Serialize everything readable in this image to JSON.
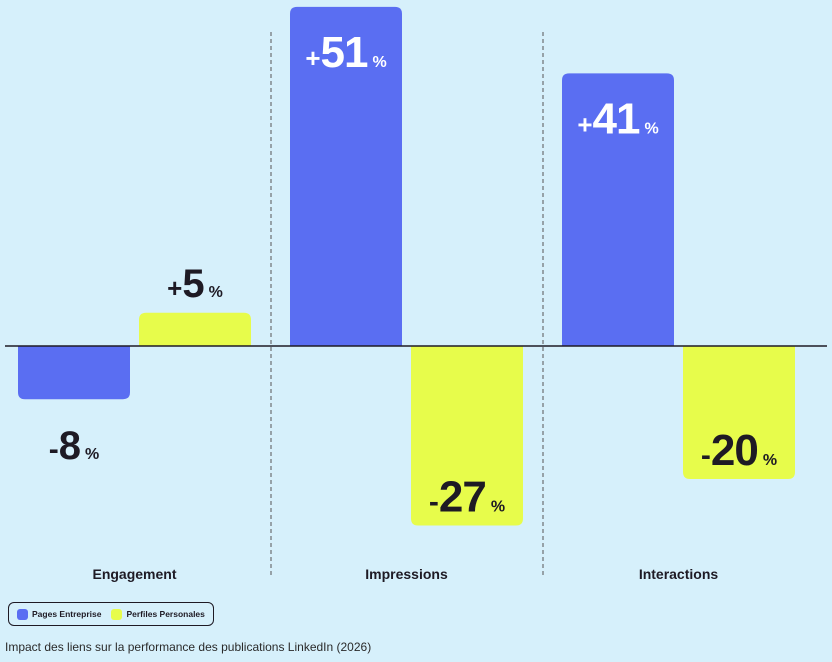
{
  "chart_data": {
    "type": "bar",
    "categories": [
      "Engagement",
      "Impressions",
      "Interactions"
    ],
    "series": [
      {
        "name": "Pages Entreprise",
        "values": [
          -8,
          51,
          41
        ],
        "labels": [
          "-8",
          "+51",
          "+41"
        ]
      },
      {
        "name": "Perfiles Personales",
        "values": [
          5,
          -27,
          -20
        ],
        "labels": [
          "+5",
          "-27",
          "-20"
        ]
      }
    ],
    "unit": "%",
    "ylim": [
      -30,
      55
    ],
    "grid": false,
    "legend_position": "bottom-left"
  },
  "colors": {
    "background": "#d6f0fb",
    "pages_entreprise": "#5a6ef2",
    "perfiles_personales": "#e7fc4b",
    "ink": "#1e1a24",
    "label_on_bar": "#ffffff"
  },
  "legend": {
    "items": [
      {
        "label": "Pages Entreprise"
      },
      {
        "label": "Perfiles Personales"
      }
    ]
  },
  "caption": "Impact des liens sur la performance des publications LinkedIn (2026)"
}
